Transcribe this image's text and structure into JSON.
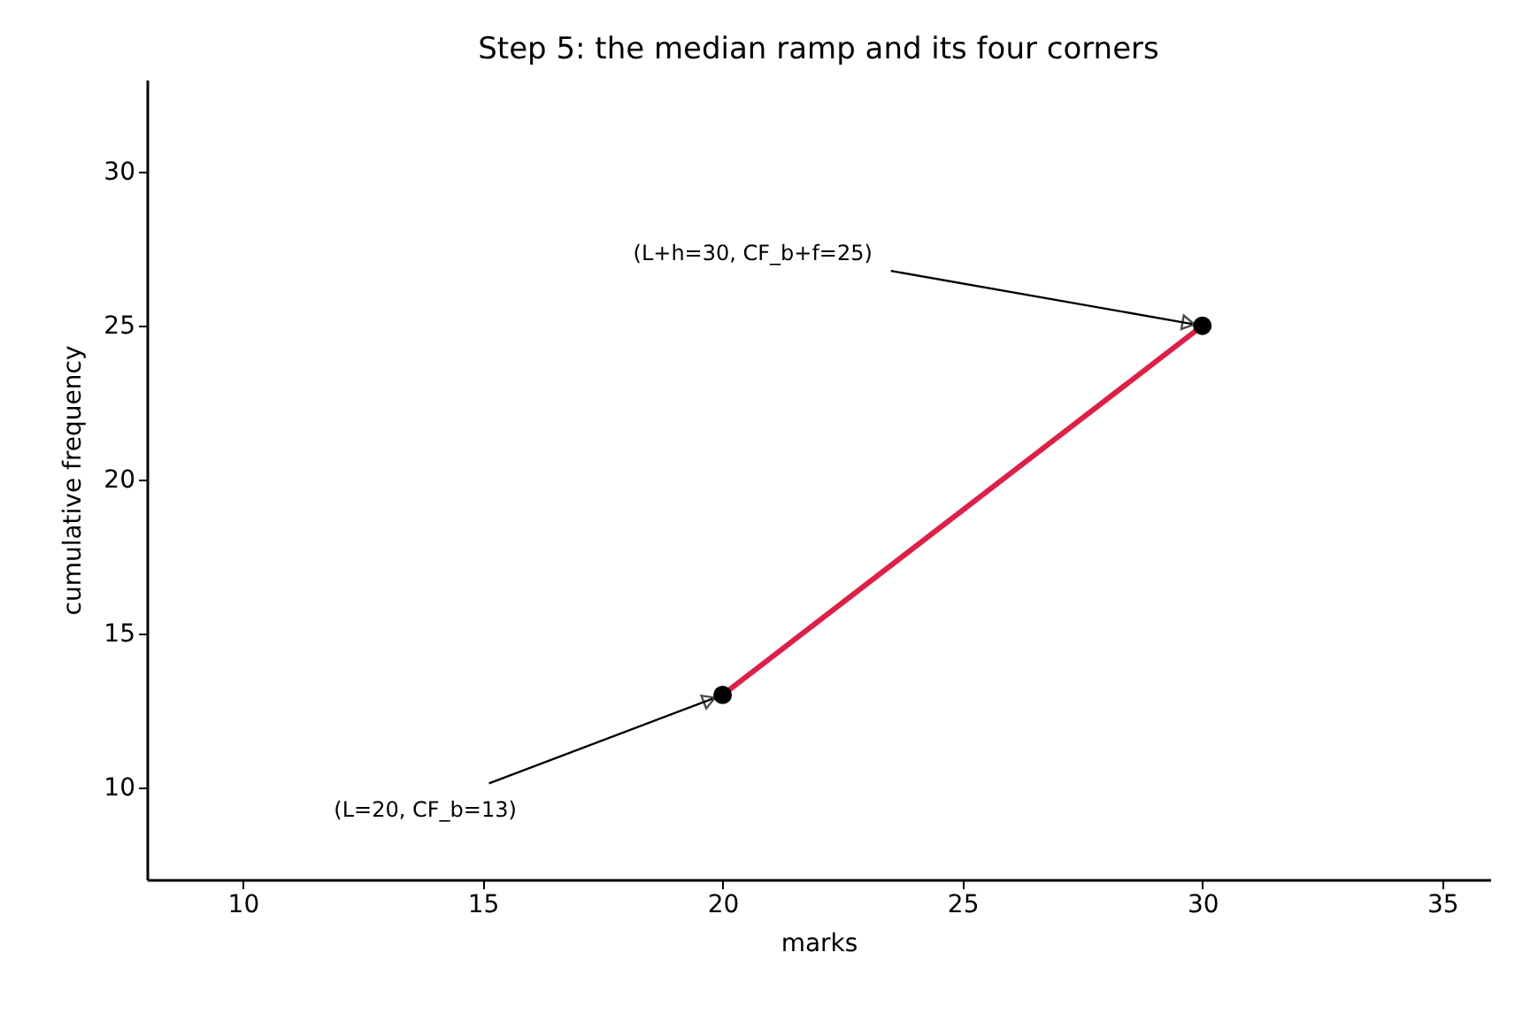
{
  "chart_data": {
    "type": "line",
    "title": "Step 5: the median ramp and its four corners",
    "xlabel": "marks",
    "ylabel": "cumulative frequency",
    "x": [
      20,
      30
    ],
    "series": [
      {
        "type": "line",
        "color": "#dc2148",
        "values": [
          13,
          25
        ]
      },
      {
        "type": "scatter",
        "color": "#000000",
        "values": [
          13,
          25
        ]
      }
    ],
    "xlim": [
      8,
      36
    ],
    "xticks": [
      10,
      15,
      20,
      25,
      30,
      35
    ],
    "ylim": [
      7,
      33
    ],
    "yticks": [
      10,
      15,
      20,
      25,
      30
    ],
    "grid": false,
    "annotations": [
      {
        "text": "(L=20, CF_b=13)",
        "x": 20,
        "y": 13
      },
      {
        "text": "(L+h=30, CF_b+f=25)",
        "x": 30,
        "y": 25
      }
    ]
  }
}
